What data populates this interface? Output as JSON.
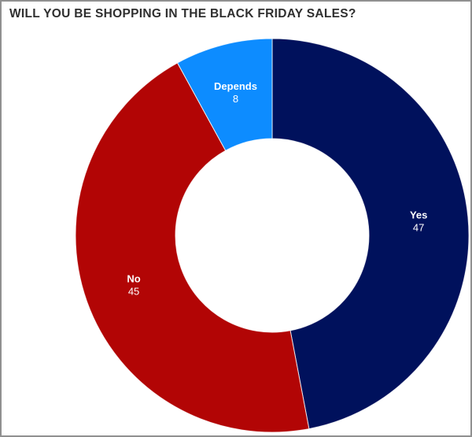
{
  "header": {
    "title": "WILL YOU BE SHOPPING IN THE BLACK FRIDAY SALES?"
  },
  "chart_data": {
    "type": "pie",
    "subtype": "donut",
    "title": "WILL YOU BE SHOPPING IN THE BLACK FRIDAY SALES?",
    "categories": [
      "Yes",
      "No",
      "Depends"
    ],
    "values": [
      47,
      45,
      8
    ],
    "total": 100,
    "colors": [
      "#00115c",
      "#b20505",
      "#0d8cff"
    ],
    "label_color": "#ffffff",
    "inner_radius_ratio": 0.49,
    "start_angle_deg": 0,
    "direction": "clockwise",
    "legend_position": "none",
    "labels_inside": true
  },
  "frame": {
    "background": "#ffffff",
    "border_color": "#909090",
    "title_color": "#2f2f2f"
  }
}
